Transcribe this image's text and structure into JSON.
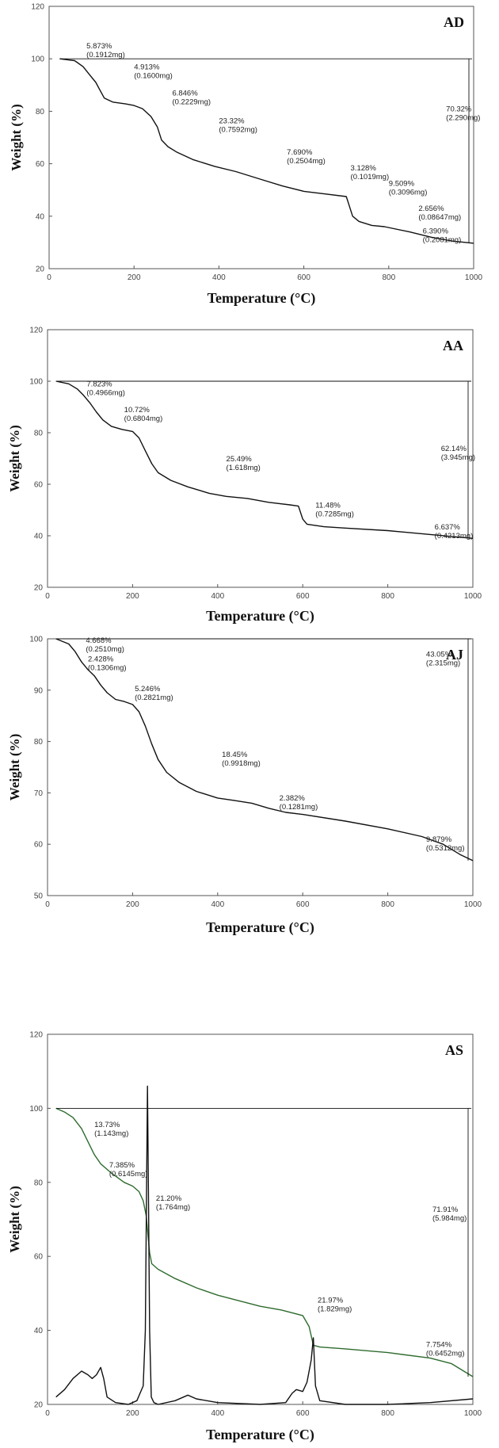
{
  "chart_data": [
    {
      "type": "line",
      "title": "AD",
      "xlabel": "Temperature (°C)",
      "ylabel": "Weight (%)",
      "xlim": [
        0,
        1000
      ],
      "ylim": [
        20,
        120
      ],
      "xticks": [
        "0",
        "200",
        "400",
        "600",
        "800",
        "1000"
      ],
      "yticks": [
        "20",
        "40",
        "60",
        "80",
        "100",
        "120"
      ],
      "series": [
        {
          "x": [
            25,
            60,
            80,
            95,
            110,
            120,
            130,
            150,
            180,
            200,
            220,
            240,
            255,
            265,
            280,
            300,
            340,
            390,
            440,
            500,
            550,
            600,
            650,
            700,
            705,
            715,
            730,
            760,
            790,
            850,
            900,
            950,
            1000
          ],
          "y": [
            100,
            99.3,
            97,
            94,
            91,
            88,
            85,
            83.5,
            82.8,
            82.2,
            81,
            78,
            74,
            69,
            66.5,
            64.5,
            61.5,
            59,
            57,
            54,
            51.5,
            49.5,
            48.5,
            47.5,
            45,
            40,
            38,
            36.5,
            36,
            34,
            32,
            30.5,
            29.7
          ]
        }
      ],
      "annotations": [
        {
          "text": "5.873%",
          "sub": "(0.1912mg)",
          "x": 88,
          "y": 104
        },
        {
          "text": "4.913%",
          "sub": "(0.1600mg)",
          "x": 200,
          "y": 96
        },
        {
          "text": "6.846%",
          "sub": "(0.2229mg)",
          "x": 290,
          "y": 86
        },
        {
          "text": "23.32%",
          "sub": "(0.7592mg)",
          "x": 400,
          "y": 75.5
        },
        {
          "text": "7.690%",
          "sub": "(0.2504mg)",
          "x": 560,
          "y": 63.5
        },
        {
          "text": "3.128%",
          "sub": "(0.1019mg)",
          "x": 710,
          "y": 57.5
        },
        {
          "text": "9.509%",
          "sub": "(0.3096mg)",
          "x": 800,
          "y": 51.5
        },
        {
          "text": "2.656%",
          "sub": "(0.08647mg)",
          "x": 870,
          "y": 42
        },
        {
          "text": "6.390%",
          "sub": "(0.2081mg)",
          "x": 880,
          "y": 33.5
        },
        {
          "text": "70.32%",
          "sub": "(2.290mg)",
          "x": 935,
          "y": 80
        }
      ]
    },
    {
      "type": "line",
      "title": "AA",
      "xlabel": "Temperature (°C)",
      "ylabel": "Weight (%)",
      "xlim": [
        0,
        1000
      ],
      "ylim": [
        20,
        120
      ],
      "xticks": [
        "0",
        "200",
        "400",
        "600",
        "800",
        "1000"
      ],
      "yticks": [
        "20",
        "40",
        "60",
        "80",
        "100",
        "120"
      ],
      "series": [
        {
          "x": [
            20,
            50,
            70,
            85,
            100,
            115,
            130,
            150,
            175,
            200,
            215,
            230,
            245,
            260,
            290,
            330,
            380,
            420,
            470,
            520,
            570,
            590,
            600,
            610,
            650,
            700,
            800,
            900,
            1000
          ],
          "y": [
            100,
            99,
            97,
            94.5,
            91.5,
            88,
            85,
            82.5,
            81.3,
            80.5,
            78,
            73,
            68,
            64.5,
            61.5,
            59,
            56.5,
            55.3,
            54.5,
            53,
            52,
            51.5,
            46.5,
            44.5,
            43.5,
            43,
            42,
            40.5,
            39
          ]
        }
      ],
      "annotations": [
        {
          "text": "7.823%",
          "sub": "(0.4966mg)",
          "x": 92,
          "y": 98
        },
        {
          "text": "10.72%",
          "sub": "(0.6804mg)",
          "x": 180,
          "y": 88
        },
        {
          "text": "25.49%",
          "sub": "(1.618mg)",
          "x": 420,
          "y": 69
        },
        {
          "text": "11.48%",
          "sub": "(0.7285mg)",
          "x": 630,
          "y": 51
        },
        {
          "text": "6.637%",
          "sub": "(0.4213mg)",
          "x": 910,
          "y": 42.5
        },
        {
          "text": "62.14%",
          "sub": "(3.945mg)",
          "x": 925,
          "y": 73
        }
      ]
    },
    {
      "type": "line",
      "title": "AJ",
      "xlabel": "Temperature (°C)",
      "ylabel": "Weight (%)",
      "xlim": [
        0,
        1000
      ],
      "ylim": [
        50,
        100
      ],
      "xticks": [
        "0",
        "200",
        "400",
        "600",
        "800",
        "1000"
      ],
      "yticks": [
        "50",
        "60",
        "70",
        "80",
        "90",
        "100"
      ],
      "series": [
        {
          "x": [
            20,
            50,
            65,
            80,
            95,
            110,
            125,
            140,
            160,
            180,
            200,
            215,
            230,
            245,
            260,
            280,
            310,
            350,
            400,
            440,
            480,
            520,
            560,
            600,
            700,
            800,
            880,
            930,
            970,
            1000
          ],
          "y": [
            100,
            99,
            97.5,
            95.5,
            94,
            92.8,
            91,
            89.5,
            88.2,
            87.8,
            87.2,
            85.8,
            83,
            79.5,
            76.5,
            74,
            72,
            70.3,
            69,
            68.5,
            68,
            67,
            66.2,
            65.8,
            64.5,
            63,
            61.5,
            60,
            58,
            56.8
          ]
        }
      ],
      "annotations": [
        {
          "text": "4.668%",
          "sub": "(0.2510mg)",
          "x": 90,
          "y": 99.2
        },
        {
          "text": "2.428%",
          "sub": "(0.1306mg)",
          "x": 95,
          "y": 95.6
        },
        {
          "text": "5.246%",
          "sub": "(0.2821mg)",
          "x": 205,
          "y": 89.8
        },
        {
          "text": "18.45%",
          "sub": "(0.9918mg)",
          "x": 410,
          "y": 77
        },
        {
          "text": "2.382%",
          "sub": "(0.1281mg)",
          "x": 545,
          "y": 68.5
        },
        {
          "text": "9.879%",
          "sub": "(0.5312mg)",
          "x": 890,
          "y": 60.5
        },
        {
          "text": "43.05%",
          "sub": "(2.315mg)",
          "x": 890,
          "y": 96.5
        }
      ]
    },
    {
      "type": "line",
      "title": "AS",
      "xlabel": "Temperature (°C)",
      "ylabel": "Weight (%)",
      "xlim": [
        0,
        1000
      ],
      "ylim": [
        20,
        120
      ],
      "xticks": [
        "0",
        "200",
        "400",
        "600",
        "800",
        "1000"
      ],
      "yticks": [
        "20",
        "40",
        "60",
        "80",
        "100",
        "120"
      ],
      "colors": {
        "weight": "#2e6b2e",
        "signal": "#111111"
      },
      "series": [
        {
          "x": [
            20,
            40,
            60,
            80,
            95,
            110,
            125,
            150,
            180,
            200,
            215,
            225,
            232,
            236,
            240,
            245,
            260,
            300,
            350,
            400,
            450,
            500,
            550,
            600,
            615,
            625,
            640,
            700,
            800,
            900,
            950,
            1000
          ],
          "y": [
            100,
            99,
            97.5,
            94.5,
            91,
            87.5,
            85,
            82.5,
            80,
            79,
            77.5,
            75,
            71,
            66,
            61,
            58,
            56.5,
            54,
            51.5,
            49.5,
            48,
            46.5,
            45.5,
            44,
            41,
            36,
            35.5,
            35,
            34,
            32.5,
            31,
            27.5
          ]
        },
        {
          "x": [
            20,
            40,
            60,
            80,
            95,
            105,
            115,
            125,
            132,
            140,
            160,
            190,
            210,
            225,
            230,
            233,
            235,
            237,
            240,
            244,
            250,
            260,
            300,
            330,
            350,
            400,
            500,
            560,
            575,
            585,
            600,
            610,
            620,
            625,
            630,
            640,
            700,
            800,
            900,
            1000
          ],
          "y": [
            22,
            24,
            27,
            29,
            28,
            27,
            28,
            30,
            27,
            22,
            20.5,
            20,
            21,
            25,
            40,
            80,
            106,
            80,
            40,
            22,
            20.5,
            20,
            21,
            22.5,
            21.5,
            20.5,
            20,
            20.5,
            23,
            24,
            23.5,
            26,
            32,
            38,
            25,
            21,
            20,
            20,
            20.5,
            21.5
          ]
        }
      ],
      "annotations": [
        {
          "text": "13.73%",
          "sub": "(1.143mg)",
          "x": 110,
          "y": 95
        },
        {
          "text": "7.385%",
          "sub": "(0.6145mg)",
          "x": 145,
          "y": 84
        },
        {
          "text": "21.20%",
          "sub": "(1.764mg)",
          "x": 255,
          "y": 75
        },
        {
          "text": "21.97%",
          "sub": "(1.829mg)",
          "x": 635,
          "y": 47.5
        },
        {
          "text": "7.754%",
          "sub": "(0.6452mg)",
          "x": 890,
          "y": 35.5
        },
        {
          "text": "71.91%",
          "sub": "(5.984mg)",
          "x": 905,
          "y": 72
        }
      ]
    }
  ]
}
